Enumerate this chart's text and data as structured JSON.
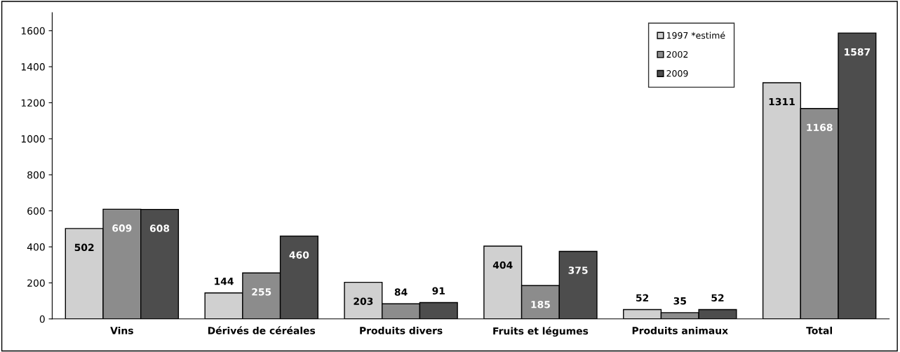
{
  "chart_data": {
    "type": "bar",
    "categories": [
      "Vins",
      "Dérivés de céréales",
      "Produits divers",
      "Fruits et légumes",
      "Produits animaux",
      "Total"
    ],
    "series": [
      {
        "name": "1997 *estimé",
        "color": "#d0d0d0",
        "values": [
          502,
          144,
          203,
          404,
          52,
          1311
        ]
      },
      {
        "name": "2002",
        "color": "#8c8c8c",
        "values": [
          609,
          255,
          84,
          185,
          35,
          1168
        ]
      },
      {
        "name": "2009",
        "color": "#4d4d4d",
        "values": [
          608,
          460,
          91,
          375,
          52,
          1587
        ]
      }
    ],
    "ylim": [
      0,
      1700
    ],
    "yticks": [
      0,
      200,
      400,
      600,
      800,
      1000,
      1200,
      1400,
      1600
    ],
    "grid": false,
    "legend": "top right",
    "data_labels": true
  }
}
